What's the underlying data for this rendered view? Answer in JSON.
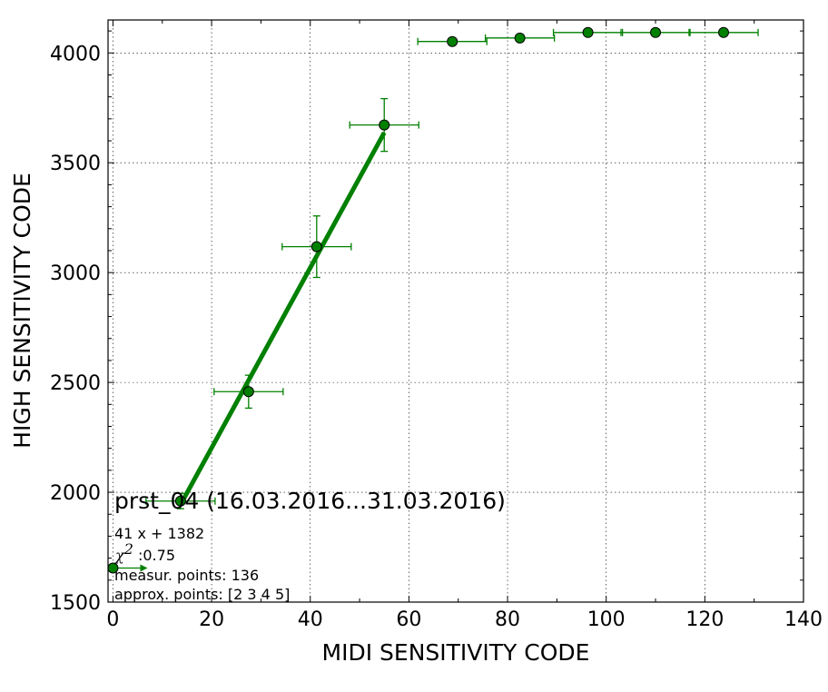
{
  "chart_data": {
    "type": "scatter",
    "title": "prst_04 (16.03.2016...31.03.2016)",
    "xlabel": "MIDI SENSITIVITY CODE",
    "ylabel": "HIGH SENSITIVITY CODE",
    "xlim": [
      -1,
      140
    ],
    "ylim": [
      1500,
      4150
    ],
    "xticks": [
      0,
      20,
      40,
      60,
      80,
      100,
      120,
      140
    ],
    "yticks": [
      1500,
      2000,
      2500,
      3000,
      3500,
      4000
    ],
    "xtick_labels": [
      "0",
      "20",
      "40",
      "60",
      "80",
      "100",
      "120",
      "140"
    ],
    "ytick_labels": [
      "1500",
      "2000",
      "2500",
      "3000",
      "3500",
      "4000"
    ],
    "grid": true,
    "color": "#008000",
    "series": [
      {
        "points": [
          {
            "x": 0,
            "y": 1655,
            "xerr": 7,
            "yerr": 0
          },
          {
            "x": 13.7,
            "y": 1960,
            "xerr": 7,
            "yerr": 35
          },
          {
            "x": 27.5,
            "y": 2458,
            "xerr": 7,
            "yerr": 75
          },
          {
            "x": 41.3,
            "y": 3118,
            "xerr": 7,
            "yerr": 140
          },
          {
            "x": 55.0,
            "y": 3672,
            "xerr": 7,
            "yerr": 120
          },
          {
            "x": 68.8,
            "y": 4052,
            "xerr": 7,
            "yerr": 15
          },
          {
            "x": 82.5,
            "y": 4068,
            "xerr": 7,
            "yerr": 10
          },
          {
            "x": 96.3,
            "y": 4093,
            "xerr": 7,
            "yerr": 0
          },
          {
            "x": 110.0,
            "y": 4093,
            "xerr": 7,
            "yerr": 0
          },
          {
            "x": 123.8,
            "y": 4093,
            "xerr": 7,
            "yerr": 0
          }
        ]
      }
    ],
    "fit": {
      "slope": 41,
      "intercept": 1382,
      "x_range": [
        13.7,
        55.0
      ],
      "color": "#008000"
    },
    "annotations": {
      "equation": "41 x + 1382",
      "chi_symbol": "χ",
      "chi_sup": "2",
      "chi_value": " :0.75",
      "measur_points": "measur. points: 136",
      "approx_points": "approx. points: [2 3 4 5]"
    }
  }
}
